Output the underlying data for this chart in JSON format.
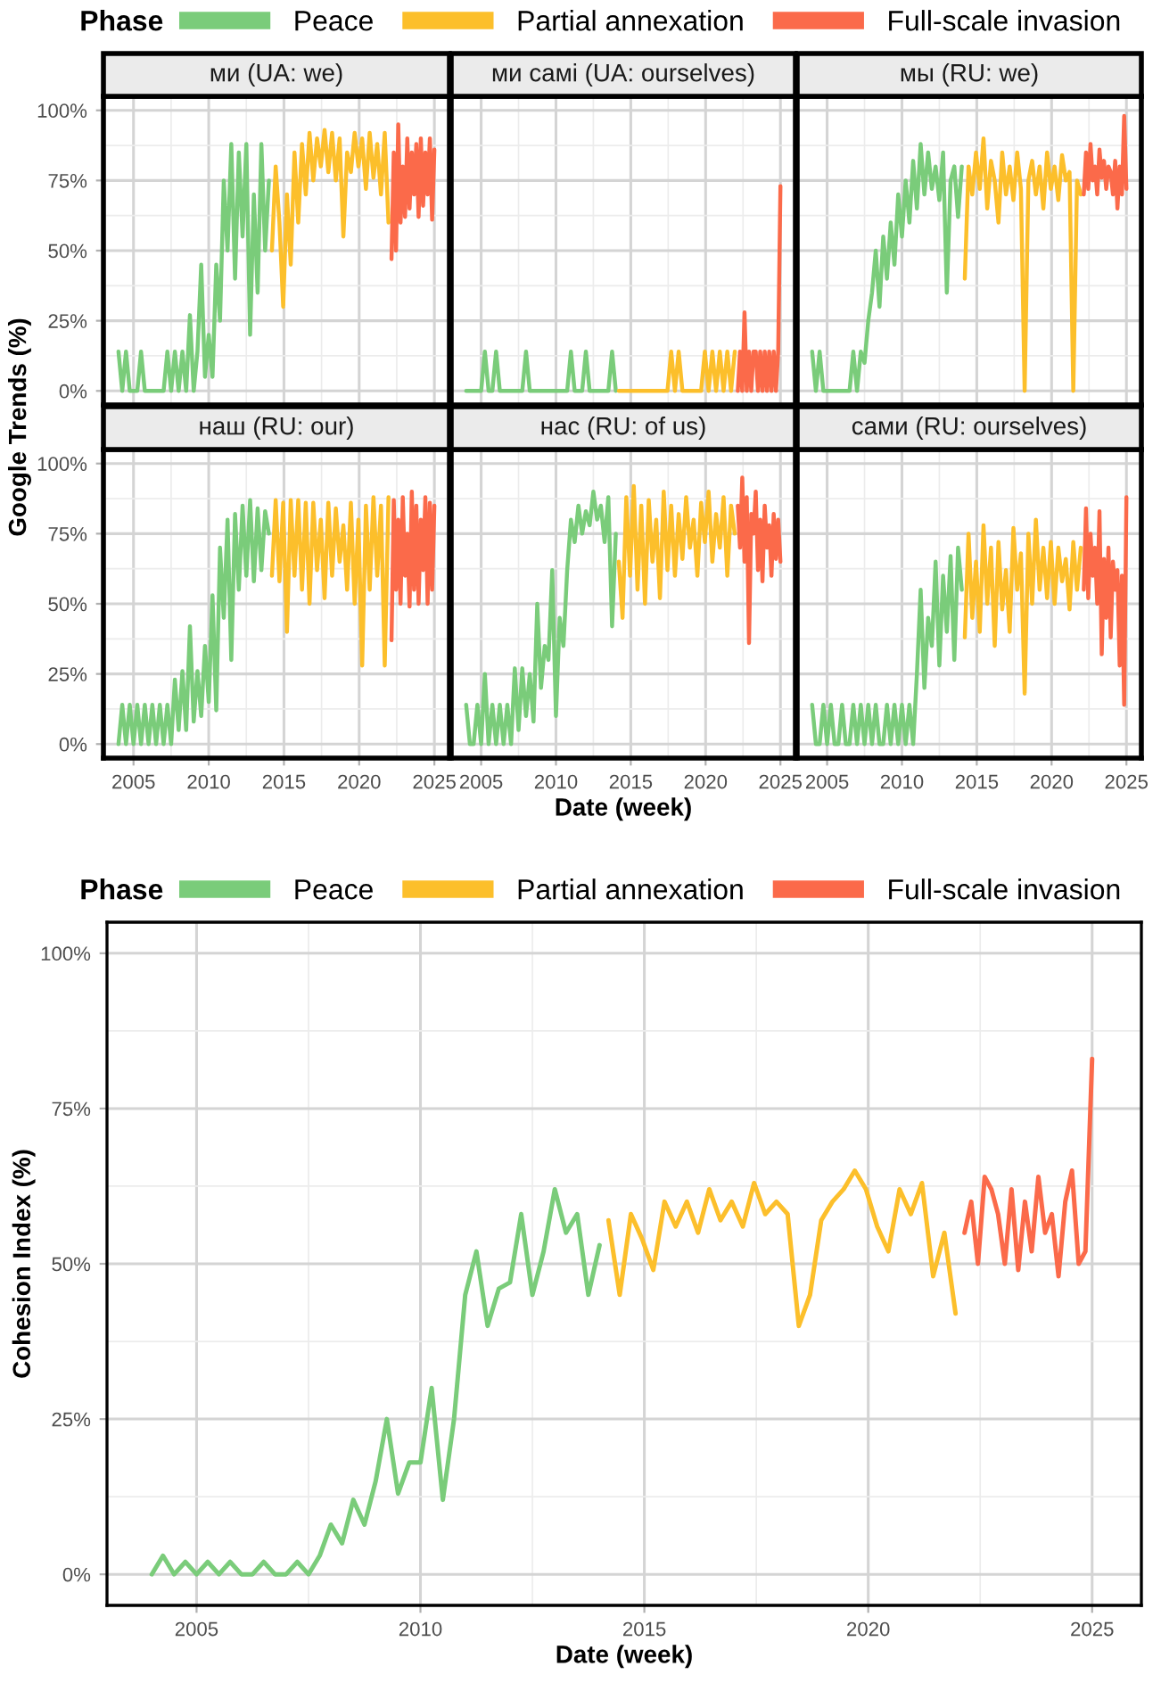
{
  "chart_data": [
    {
      "type": "line",
      "title": "ми (UA: we)",
      "ylabel": "Google Trends (%)",
      "legend": "top",
      "legend_title": "Phase",
      "grid": true,
      "tick_labels": "y",
      "xlim": [
        2003,
        2026
      ],
      "ylim": [
        -5,
        105
      ],
      "xticks": [
        2005,
        2010,
        2015,
        2020,
        2025
      ],
      "yticks": [
        {
          "value": 0,
          "label": "0%"
        },
        {
          "value": 25,
          "label": "25%"
        },
        {
          "value": 50,
          "label": "50%"
        },
        {
          "value": 75,
          "label": "75%"
        },
        {
          "value": 100,
          "label": "100%"
        }
      ],
      "series": [
        {
          "name": "Peace",
          "color": "#7acc7a",
          "x": [
            2004,
            2004.25,
            2004.5,
            2004.75,
            2005,
            2005.25,
            2005.5,
            2005.75,
            2006,
            2006.25,
            2006.5,
            2006.75,
            2007,
            2007.25,
            2007.5,
            2007.75,
            2008,
            2008.25,
            2008.5,
            2008.75,
            2009,
            2009.25,
            2009.5,
            2009.75,
            2010,
            2010.25,
            2010.5,
            2010.75,
            2011,
            2011.25,
            2011.5,
            2011.75,
            2012,
            2012.25,
            2012.5,
            2012.75,
            2013,
            2013.25,
            2013.5,
            2013.75,
            2014
          ],
          "values": [
            14,
            0,
            14,
            0,
            0,
            0,
            14,
            0,
            0,
            0,
            0,
            0,
            0,
            14,
            0,
            14,
            0,
            14,
            0,
            27,
            0,
            14,
            45,
            5,
            20,
            5,
            45,
            25,
            75,
            50,
            88,
            40,
            85,
            55,
            88,
            20,
            70,
            35,
            88,
            50,
            75
          ]
        },
        {
          "name": "Partial annexation",
          "color": "#fcbf2b",
          "x": [
            2014.2,
            2014.45,
            2014.7,
            2014.95,
            2015.2,
            2015.45,
            2015.7,
            2015.95,
            2016.2,
            2016.45,
            2016.7,
            2016.95,
            2017.2,
            2017.45,
            2017.7,
            2017.95,
            2018.2,
            2018.45,
            2018.7,
            2018.95,
            2019.2,
            2019.45,
            2019.7,
            2019.95,
            2020.2,
            2020.45,
            2020.7,
            2020.95,
            2021.2,
            2021.45,
            2021.7,
            2021.95
          ],
          "values": [
            50,
            80,
            60,
            30,
            70,
            45,
            85,
            60,
            88,
            70,
            92,
            75,
            90,
            80,
            93,
            78,
            92,
            75,
            90,
            55,
            85,
            78,
            92,
            80,
            90,
            72,
            92,
            76,
            88,
            70,
            92,
            60
          ]
        },
        {
          "name": "Full-scale invasion",
          "color": "#fb6a4a",
          "x": [
            2022.15,
            2022.3,
            2022.45,
            2022.6,
            2022.75,
            2022.9,
            2023.05,
            2023.2,
            2023.35,
            2023.5,
            2023.65,
            2023.8,
            2023.95,
            2024.1,
            2024.25,
            2024.4,
            2024.55,
            2024.7,
            2024.85,
            2025.0
          ],
          "values": [
            47,
            85,
            50,
            95,
            60,
            80,
            62,
            90,
            65,
            85,
            70,
            88,
            62,
            90,
            66,
            85,
            70,
            90,
            61,
            86
          ]
        }
      ]
    },
    {
      "type": "line",
      "title": "ми самі (UA: ourselves)",
      "grid": true,
      "tick_labels": false,
      "xlim": [
        2003,
        2026
      ],
      "ylim": [
        -5,
        105
      ],
      "xticks": [
        2005,
        2010,
        2015,
        2020,
        2025
      ],
      "yticks": [
        0,
        25,
        50,
        75,
        100
      ],
      "series": [
        {
          "color": "#7acc7a",
          "x": [
            2004,
            2004.25,
            2004.5,
            2004.75,
            2005,
            2005.25,
            2005.5,
            2005.75,
            2006,
            2006.25,
            2006.5,
            2006.75,
            2007,
            2007.25,
            2007.5,
            2007.75,
            2008,
            2008.25,
            2008.5,
            2008.75,
            2009,
            2009.25,
            2009.5,
            2009.75,
            2010,
            2010.25,
            2010.5,
            2010.75,
            2011,
            2011.25,
            2011.5,
            2011.75,
            2012,
            2012.25,
            2012.5,
            2012.75,
            2013,
            2013.25,
            2013.5,
            2013.75,
            2014
          ],
          "values": [
            0,
            0,
            0,
            0,
            0,
            14,
            0,
            0,
            14,
            0,
            0,
            0,
            0,
            0,
            0,
            0,
            14,
            0,
            0,
            0,
            0,
            0,
            0,
            0,
            0,
            0,
            0,
            0,
            14,
            0,
            0,
            0,
            14,
            0,
            0,
            0,
            0,
            0,
            0,
            14,
            0
          ]
        },
        {
          "color": "#fcbf2b",
          "x": [
            2014.2,
            2014.45,
            2014.7,
            2014.95,
            2015.2,
            2015.45,
            2015.7,
            2015.95,
            2016.2,
            2016.45,
            2016.7,
            2016.95,
            2017.2,
            2017.45,
            2017.7,
            2017.95,
            2018.2,
            2018.45,
            2018.7,
            2018.95,
            2019.2,
            2019.45,
            2019.7,
            2019.95,
            2020.2,
            2020.45,
            2020.7,
            2020.95,
            2021.2,
            2021.45,
            2021.7,
            2021.95
          ],
          "values": [
            0,
            0,
            0,
            0,
            0,
            0,
            0,
            0,
            0,
            0,
            0,
            0,
            0,
            0,
            14,
            0,
            14,
            0,
            0,
            0,
            0,
            0,
            0,
            14,
            0,
            14,
            0,
            14,
            0,
            14,
            0,
            14
          ]
        },
        {
          "color": "#fb6a4a",
          "x": [
            2022.15,
            2022.3,
            2022.45,
            2022.6,
            2022.75,
            2022.9,
            2023.05,
            2023.2,
            2023.35,
            2023.5,
            2023.65,
            2023.8,
            2023.95,
            2024.1,
            2024.25,
            2024.4,
            2024.55,
            2024.7,
            2024.85,
            2025.0
          ],
          "values": [
            0,
            14,
            0,
            28,
            0,
            14,
            0,
            14,
            14,
            0,
            14,
            0,
            14,
            0,
            14,
            0,
            14,
            0,
            14,
            73
          ]
        }
      ]
    },
    {
      "type": "line",
      "title": "мы (RU: we)",
      "grid": true,
      "tick_labels": false,
      "xlim": [
        2003,
        2026
      ],
      "ylim": [
        -5,
        105
      ],
      "xticks": [
        2005,
        2010,
        2015,
        2020,
        2025
      ],
      "yticks": [
        0,
        25,
        50,
        75,
        100
      ],
      "series": [
        {
          "color": "#7acc7a",
          "x": [
            2004,
            2004.25,
            2004.5,
            2004.75,
            2005,
            2005.25,
            2005.5,
            2005.75,
            2006,
            2006.25,
            2006.5,
            2006.75,
            2007,
            2007.25,
            2007.5,
            2007.75,
            2008,
            2008.25,
            2008.5,
            2008.75,
            2009,
            2009.25,
            2009.5,
            2009.75,
            2010,
            2010.25,
            2010.5,
            2010.75,
            2011,
            2011.25,
            2011.5,
            2011.75,
            2012,
            2012.25,
            2012.5,
            2012.75,
            2013,
            2013.25,
            2013.5,
            2013.75,
            2014
          ],
          "values": [
            14,
            0,
            14,
            0,
            0,
            0,
            0,
            0,
            0,
            0,
            0,
            14,
            0,
            14,
            10,
            25,
            35,
            50,
            30,
            55,
            40,
            60,
            45,
            70,
            55,
            75,
            60,
            82,
            65,
            88,
            70,
            85,
            72,
            80,
            68,
            85,
            35,
            75,
            80,
            62,
            80
          ]
        },
        {
          "color": "#fcbf2b",
          "x": [
            2014.2,
            2014.45,
            2014.7,
            2014.95,
            2015.2,
            2015.45,
            2015.7,
            2015.95,
            2016.2,
            2016.45,
            2016.7,
            2016.95,
            2017.2,
            2017.45,
            2017.7,
            2017.95,
            2018.2,
            2018.45,
            2018.7,
            2018.95,
            2019.2,
            2019.45,
            2019.7,
            2019.95,
            2020.2,
            2020.45,
            2020.7,
            2020.95,
            2021.2,
            2021.45,
            2021.7,
            2021.95
          ],
          "values": [
            40,
            80,
            70,
            85,
            72,
            90,
            65,
            82,
            75,
            60,
            85,
            70,
            80,
            68,
            85,
            72,
            0,
            75,
            82,
            70,
            80,
            65,
            85,
            72,
            80,
            68,
            84,
            75,
            78,
            0,
            75,
            70
          ]
        },
        {
          "color": "#fb6a4a",
          "x": [
            2022.15,
            2022.3,
            2022.45,
            2022.6,
            2022.75,
            2022.9,
            2023.05,
            2023.2,
            2023.35,
            2023.5,
            2023.65,
            2023.8,
            2023.95,
            2024.1,
            2024.25,
            2024.4,
            2024.55,
            2024.7,
            2024.85,
            2025.0
          ],
          "values": [
            70,
            85,
            72,
            88,
            75,
            80,
            70,
            86,
            76,
            82,
            72,
            80,
            78,
            70,
            82,
            65,
            80,
            70,
            98,
            72
          ]
        }
      ]
    },
    {
      "type": "line",
      "title": "наш (RU: our)",
      "grid": true,
      "xlim": [
        2003,
        2026
      ],
      "ylim": [
        -5,
        105
      ],
      "xticks": [
        2005,
        2010,
        2015,
        2020,
        2025
      ],
      "yticks": [
        {
          "value": 0,
          "label": "0%"
        },
        {
          "value": 25,
          "label": "25%"
        },
        {
          "value": 50,
          "label": "50%"
        },
        {
          "value": 75,
          "label": "75%"
        },
        {
          "value": 100,
          "label": "100%"
        }
      ],
      "series": [
        {
          "color": "#7acc7a",
          "x": [
            2004,
            2004.25,
            2004.5,
            2004.75,
            2005,
            2005.25,
            2005.5,
            2005.75,
            2006,
            2006.25,
            2006.5,
            2006.75,
            2007,
            2007.25,
            2007.5,
            2007.75,
            2008,
            2008.25,
            2008.5,
            2008.75,
            2009,
            2009.25,
            2009.5,
            2009.75,
            2010,
            2010.25,
            2010.5,
            2010.75,
            2011,
            2011.25,
            2011.5,
            2011.75,
            2012,
            2012.25,
            2012.5,
            2012.75,
            2013,
            2013.25,
            2013.5,
            2013.75,
            2014
          ],
          "values": [
            0,
            14,
            0,
            14,
            0,
            14,
            0,
            14,
            0,
            14,
            0,
            14,
            0,
            14,
            0,
            23,
            5,
            26,
            5,
            42,
            8,
            26,
            10,
            35,
            15,
            53,
            12,
            70,
            45,
            80,
            30,
            82,
            55,
            85,
            60,
            87,
            58,
            84,
            62,
            83,
            75
          ]
        },
        {
          "color": "#fcbf2b",
          "x": [
            2014.2,
            2014.45,
            2014.7,
            2014.95,
            2015.2,
            2015.45,
            2015.7,
            2015.95,
            2016.2,
            2016.45,
            2016.7,
            2016.95,
            2017.2,
            2017.45,
            2017.7,
            2017.95,
            2018.2,
            2018.45,
            2018.7,
            2018.95,
            2019.2,
            2019.45,
            2019.7,
            2019.95,
            2020.2,
            2020.45,
            2020.7,
            2020.95,
            2021.2,
            2021.45,
            2021.7,
            2021.95
          ],
          "values": [
            60,
            87,
            58,
            86,
            40,
            87,
            60,
            87,
            55,
            86,
            50,
            86,
            62,
            80,
            52,
            86,
            60,
            84,
            65,
            78,
            55,
            86,
            50,
            80,
            28,
            85,
            55,
            88,
            60,
            85,
            28,
            88
          ]
        },
        {
          "color": "#fb6a4a",
          "x": [
            2022.15,
            2022.3,
            2022.45,
            2022.6,
            2022.75,
            2022.9,
            2023.05,
            2023.2,
            2023.35,
            2023.5,
            2023.65,
            2023.8,
            2023.95,
            2024.1,
            2024.25,
            2024.4,
            2024.55,
            2024.7,
            2024.85,
            2025.0
          ],
          "values": [
            37,
            87,
            55,
            80,
            50,
            88,
            60,
            75,
            49,
            90,
            55,
            85,
            50,
            80,
            62,
            88,
            50,
            86,
            55,
            85
          ]
        }
      ]
    },
    {
      "type": "line",
      "title": "нас (RU: of us)",
      "xlabel": "Date (week)",
      "grid": true,
      "tick_labels": "x",
      "xlim": [
        2003,
        2026
      ],
      "ylim": [
        -5,
        105
      ],
      "xticks": [
        2005,
        2010,
        2015,
        2020,
        2025
      ],
      "yticks": [
        0,
        25,
        50,
        75,
        100
      ],
      "series": [
        {
          "color": "#7acc7a",
          "x": [
            2004,
            2004.25,
            2004.5,
            2004.75,
            2005,
            2005.25,
            2005.5,
            2005.75,
            2006,
            2006.25,
            2006.5,
            2006.75,
            2007,
            2007.25,
            2007.5,
            2007.75,
            2008,
            2008.25,
            2008.5,
            2008.75,
            2009,
            2009.25,
            2009.5,
            2009.75,
            2010,
            2010.25,
            2010.5,
            2010.75,
            2011,
            2011.25,
            2011.5,
            2011.75,
            2012,
            2012.25,
            2012.5,
            2012.75,
            2013,
            2013.25,
            2013.5,
            2013.75,
            2014
          ],
          "values": [
            14,
            0,
            0,
            14,
            0,
            25,
            0,
            14,
            0,
            14,
            0,
            14,
            0,
            27,
            5,
            27,
            10,
            25,
            8,
            50,
            20,
            35,
            30,
            62,
            10,
            45,
            35,
            62,
            80,
            72,
            85,
            75,
            83,
            78,
            90,
            80,
            85,
            72,
            88,
            42,
            75
          ]
        },
        {
          "color": "#fcbf2b",
          "x": [
            2014.2,
            2014.45,
            2014.7,
            2014.95,
            2015.2,
            2015.45,
            2015.7,
            2015.95,
            2016.2,
            2016.45,
            2016.7,
            2016.95,
            2017.2,
            2017.45,
            2017.7,
            2017.95,
            2018.2,
            2018.45,
            2018.7,
            2018.95,
            2019.2,
            2019.45,
            2019.7,
            2019.95,
            2020.2,
            2020.45,
            2020.7,
            2020.95,
            2021.2,
            2021.45,
            2021.7,
            2021.95
          ],
          "values": [
            65,
            45,
            88,
            60,
            92,
            55,
            85,
            50,
            87,
            65,
            80,
            52,
            90,
            62,
            85,
            60,
            82,
            66,
            88,
            70,
            80,
            60,
            86,
            72,
            90,
            65,
            82,
            70,
            88,
            60,
            85,
            75
          ]
        },
        {
          "color": "#fb6a4a",
          "x": [
            2022.15,
            2022.3,
            2022.45,
            2022.6,
            2022.75,
            2022.9,
            2023.05,
            2023.2,
            2023.35,
            2023.5,
            2023.65,
            2023.8,
            2023.95,
            2024.1,
            2024.25,
            2024.4,
            2024.55,
            2024.7,
            2024.85,
            2025.0
          ],
          "values": [
            85,
            70,
            95,
            65,
            88,
            36,
            82,
            75,
            90,
            62,
            80,
            58,
            85,
            70,
            78,
            60,
            82,
            66,
            80,
            65
          ]
        }
      ]
    },
    {
      "type": "line",
      "title": "сами (RU: ourselves)",
      "grid": true,
      "tick_labels": "x",
      "xlim": [
        2003,
        2026
      ],
      "ylim": [
        -5,
        105
      ],
      "xticks": [
        2005,
        2010,
        2015,
        2020,
        2025
      ],
      "yticks": [
        0,
        25,
        50,
        75,
        100
      ],
      "series": [
        {
          "color": "#7acc7a",
          "x": [
            2004,
            2004.25,
            2004.5,
            2004.75,
            2005,
            2005.25,
            2005.5,
            2005.75,
            2006,
            2006.25,
            2006.5,
            2006.75,
            2007,
            2007.25,
            2007.5,
            2007.75,
            2008,
            2008.25,
            2008.5,
            2008.75,
            2009,
            2009.25,
            2009.5,
            2009.75,
            2010,
            2010.25,
            2010.5,
            2010.75,
            2011,
            2011.25,
            2011.5,
            2011.75,
            2012,
            2012.25,
            2012.5,
            2012.75,
            2013,
            2013.25,
            2013.5,
            2013.75,
            2014
          ],
          "values": [
            14,
            0,
            0,
            14,
            0,
            14,
            0,
            0,
            14,
            0,
            0,
            14,
            0,
            14,
            0,
            14,
            0,
            14,
            0,
            0,
            14,
            0,
            14,
            0,
            14,
            0,
            14,
            0,
            25,
            55,
            20,
            45,
            35,
            65,
            28,
            60,
            40,
            67,
            30,
            70,
            55
          ]
        },
        {
          "color": "#fcbf2b",
          "x": [
            2014.2,
            2014.45,
            2014.7,
            2014.95,
            2015.2,
            2015.45,
            2015.7,
            2015.95,
            2016.2,
            2016.45,
            2016.7,
            2016.95,
            2017.2,
            2017.45,
            2017.7,
            2017.95,
            2018.2,
            2018.45,
            2018.7,
            2018.95,
            2019.2,
            2019.45,
            2019.7,
            2019.95,
            2020.2,
            2020.45,
            2020.7,
            2020.95,
            2021.2,
            2021.45,
            2021.7,
            2021.95
          ],
          "values": [
            38,
            75,
            45,
            65,
            40,
            78,
            50,
            70,
            35,
            72,
            48,
            62,
            40,
            77,
            55,
            68,
            18,
            75,
            50,
            80,
            55,
            70,
            52,
            72,
            50,
            70,
            58,
            66,
            48,
            72,
            55,
            70
          ]
        },
        {
          "color": "#fb6a4a",
          "x": [
            2022.15,
            2022.3,
            2022.45,
            2022.6,
            2022.75,
            2022.9,
            2023.05,
            2023.2,
            2023.35,
            2023.5,
            2023.65,
            2023.8,
            2023.95,
            2024.1,
            2024.25,
            2024.4,
            2024.55,
            2024.7,
            2024.85,
            2025.0
          ],
          "values": [
            55,
            84,
            52,
            75,
            60,
            70,
            50,
            83,
            32,
            66,
            45,
            70,
            38,
            65,
            55,
            62,
            28,
            60,
            14,
            88
          ]
        }
      ]
    },
    {
      "type": "line",
      "xlabel": "Date (week)",
      "ylabel": "Cohesion Index (%)",
      "legend": "top",
      "legend_title": "Phase",
      "grid": true,
      "xlim": [
        2003,
        2026.1
      ],
      "ylim": [
        -5,
        105
      ],
      "xticks": [
        2005,
        2010,
        2015,
        2020,
        2025
      ],
      "yticks": [
        {
          "value": 0,
          "label": "0%"
        },
        {
          "value": 25,
          "label": "25%"
        },
        {
          "value": 50,
          "label": "50%"
        },
        {
          "value": 75,
          "label": "75%"
        },
        {
          "value": 100,
          "label": "100%"
        }
      ],
      "series": [
        {
          "name": "Peace",
          "color": "#7acc7a",
          "x": [
            2004,
            2004.25,
            2004.5,
            2004.75,
            2005,
            2005.25,
            2005.5,
            2005.75,
            2006,
            2006.25,
            2006.5,
            2006.75,
            2007,
            2007.25,
            2007.5,
            2007.75,
            2008,
            2008.25,
            2008.5,
            2008.75,
            2009,
            2009.25,
            2009.5,
            2009.75,
            2010,
            2010.25,
            2010.5,
            2010.75,
            2011,
            2011.25,
            2011.5,
            2011.75,
            2012,
            2012.25,
            2012.5,
            2012.75,
            2013,
            2013.25,
            2013.5,
            2013.75,
            2014
          ],
          "values": [
            0,
            3,
            0,
            2,
            0,
            2,
            0,
            2,
            0,
            0,
            2,
            0,
            0,
            2,
            0,
            3,
            8,
            5,
            12,
            8,
            15,
            25,
            13,
            18,
            18,
            30,
            12,
            25,
            45,
            52,
            40,
            46,
            47,
            58,
            45,
            52,
            62,
            55,
            58,
            45,
            53
          ]
        },
        {
          "name": "Partial annexation",
          "color": "#fcbf2b",
          "x": [
            2014.2,
            2014.45,
            2014.7,
            2014.95,
            2015.2,
            2015.45,
            2015.7,
            2015.95,
            2016.2,
            2016.45,
            2016.7,
            2016.95,
            2017.2,
            2017.45,
            2017.7,
            2017.95,
            2018.2,
            2018.45,
            2018.7,
            2018.95,
            2019.2,
            2019.45,
            2019.7,
            2019.95,
            2020.2,
            2020.45,
            2020.7,
            2020.95,
            2021.2,
            2021.45,
            2021.7,
            2021.95
          ],
          "values": [
            57,
            45,
            58,
            54,
            49,
            60,
            56,
            60,
            55,
            62,
            57,
            60,
            56,
            63,
            58,
            60,
            58,
            40,
            45,
            57,
            60,
            62,
            65,
            62,
            56,
            52,
            62,
            58,
            63,
            48,
            55,
            42
          ]
        },
        {
          "name": "Full-scale invasion",
          "color": "#fb6a4a",
          "x": [
            2022.15,
            2022.3,
            2022.45,
            2022.6,
            2022.75,
            2022.9,
            2023.05,
            2023.2,
            2023.35,
            2023.5,
            2023.65,
            2023.8,
            2023.95,
            2024.1,
            2024.25,
            2024.4,
            2024.55,
            2024.7,
            2024.85,
            2025.0
          ],
          "values": [
            55,
            60,
            50,
            64,
            62,
            58,
            50,
            62,
            49,
            60,
            52,
            64,
            55,
            58,
            48,
            60,
            65,
            50,
            52,
            83
          ]
        }
      ]
    }
  ]
}
